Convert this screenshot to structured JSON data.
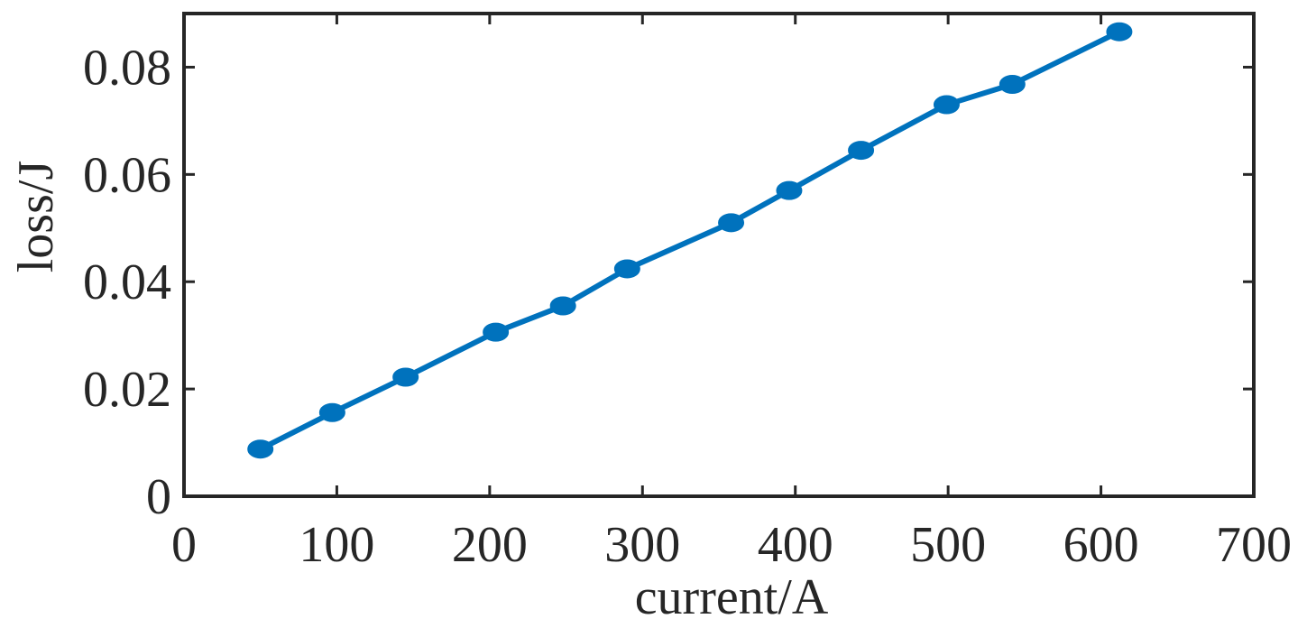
{
  "chart_data": {
    "type": "line",
    "xlabel": "current/A",
    "ylabel": "loss/J",
    "xlim": [
      0,
      700
    ],
    "ylim": [
      0,
      0.09
    ],
    "xticks": [
      "0",
      "100",
      "200",
      "300",
      "400",
      "500",
      "600",
      "700"
    ],
    "yticks": [
      "0",
      "0.02",
      "0.04",
      "0.06",
      "0.08"
    ],
    "grid": false,
    "series": [
      {
        "color": "#0072BD",
        "x": [
          50,
          97,
          145,
          204,
          248,
          290,
          358,
          396,
          443,
          499,
          542,
          612
        ],
        "y": [
          0.0088,
          0.0156,
          0.0222,
          0.0306,
          0.0355,
          0.0424,
          0.051,
          0.057,
          0.0645,
          0.073,
          0.0768,
          0.0866
        ]
      }
    ]
  }
}
